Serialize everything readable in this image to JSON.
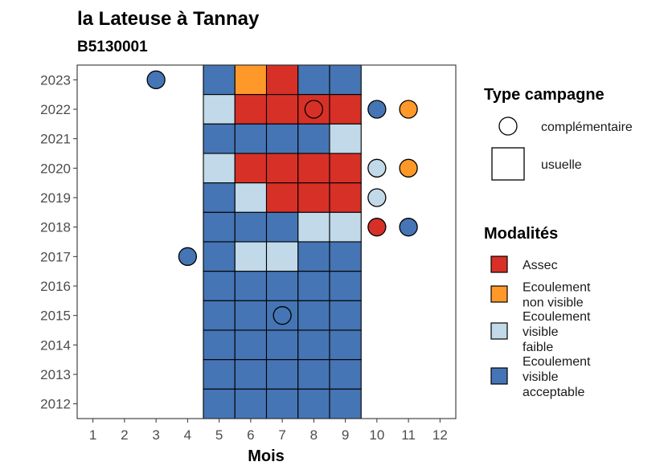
{
  "chart_data": {
    "type": "heatmap",
    "title": "la Lateuse à Tannay",
    "subtitle": "B5130001",
    "xlabel": "Mois",
    "ylabel": "",
    "x_ticks": [
      1,
      2,
      3,
      4,
      5,
      6,
      7,
      8,
      9,
      10,
      11,
      12
    ],
    "y_ticks": [
      2012,
      2013,
      2014,
      2015,
      2016,
      2017,
      2018,
      2019,
      2020,
      2021,
      2022,
      2023
    ],
    "xlim": [
      0.5,
      12.5
    ],
    "ylim": [
      2011.5,
      2023.5
    ],
    "grid": false,
    "legend_position": "right",
    "colors": {
      "Assec": "#d73027",
      "Ecoulement non visible": "#fe9929",
      "Ecoulement visible faible": "#c1d9e8",
      "Ecoulement visible acceptable": "#4575b4"
    },
    "usuelle": [
      {
        "year": 2023,
        "values": [
          "Ecoulement visible acceptable",
          "Ecoulement non visible",
          "Assec",
          "Ecoulement visible acceptable",
          "Ecoulement visible acceptable"
        ]
      },
      {
        "year": 2022,
        "values": [
          "Ecoulement visible faible",
          "Assec",
          "Assec",
          "Assec",
          "Assec"
        ]
      },
      {
        "year": 2021,
        "values": [
          "Ecoulement visible acceptable",
          "Ecoulement visible acceptable",
          "Ecoulement visible acceptable",
          "Ecoulement visible acceptable",
          "Ecoulement visible faible"
        ]
      },
      {
        "year": 2020,
        "values": [
          "Ecoulement visible faible",
          "Assec",
          "Assec",
          "Assec",
          "Assec"
        ]
      },
      {
        "year": 2019,
        "values": [
          "Ecoulement visible acceptable",
          "Ecoulement visible faible",
          "Assec",
          "Assec",
          "Assec"
        ]
      },
      {
        "year": 2018,
        "values": [
          "Ecoulement visible acceptable",
          "Ecoulement visible acceptable",
          "Ecoulement visible acceptable",
          "Ecoulement visible faible",
          "Ecoulement visible faible"
        ]
      },
      {
        "year": 2017,
        "values": [
          "Ecoulement visible acceptable",
          "Ecoulement visible faible",
          "Ecoulement visible faible",
          "Ecoulement visible acceptable",
          "Ecoulement visible acceptable"
        ]
      },
      {
        "year": 2016,
        "values": [
          "Ecoulement visible acceptable",
          "Ecoulement visible acceptable",
          "Ecoulement visible acceptable",
          "Ecoulement visible acceptable",
          "Ecoulement visible acceptable"
        ]
      },
      {
        "year": 2015,
        "values": [
          "Ecoulement visible acceptable",
          "Ecoulement visible acceptable",
          "Ecoulement visible acceptable",
          "Ecoulement visible acceptable",
          "Ecoulement visible acceptable"
        ]
      },
      {
        "year": 2014,
        "values": [
          "Ecoulement visible acceptable",
          "Ecoulement visible acceptable",
          "Ecoulement visible acceptable",
          "Ecoulement visible acceptable",
          "Ecoulement visible acceptable"
        ]
      },
      {
        "year": 2013,
        "values": [
          "Ecoulement visible acceptable",
          "Ecoulement visible acceptable",
          "Ecoulement visible acceptable",
          "Ecoulement visible acceptable",
          "Ecoulement visible acceptable"
        ]
      },
      {
        "year": 2012,
        "values": [
          "Ecoulement visible acceptable",
          "Ecoulement visible acceptable",
          "Ecoulement visible acceptable",
          "Ecoulement visible acceptable",
          "Ecoulement visible acceptable"
        ]
      }
    ],
    "usuelle_months": [
      5,
      6,
      7,
      8,
      9
    ],
    "complementaire": [
      {
        "year": 2023,
        "month": 3,
        "value": "Ecoulement visible acceptable"
      },
      {
        "year": 2022,
        "month": 8,
        "value": "Assec"
      },
      {
        "year": 2022,
        "month": 10,
        "value": "Ecoulement visible acceptable"
      },
      {
        "year": 2022,
        "month": 11,
        "value": "Ecoulement non visible"
      },
      {
        "year": 2020,
        "month": 10,
        "value": "Ecoulement visible faible"
      },
      {
        "year": 2020,
        "month": 11,
        "value": "Ecoulement non visible"
      },
      {
        "year": 2019,
        "month": 10,
        "value": "Ecoulement visible faible"
      },
      {
        "year": 2018,
        "month": 10,
        "value": "Assec"
      },
      {
        "year": 2018,
        "month": 11,
        "value": "Ecoulement visible acceptable"
      },
      {
        "year": 2017,
        "month": 4,
        "value": "Ecoulement visible acceptable"
      },
      {
        "year": 2015,
        "month": 7,
        "value": "Ecoulement visible acceptable"
      }
    ],
    "legend_type": {
      "title": "Type campagne",
      "entries": [
        {
          "shape": "circle",
          "label": "complémentaire"
        },
        {
          "shape": "square",
          "label": "usuelle"
        }
      ]
    },
    "legend_modalites": {
      "title": "Modalités",
      "entries": [
        {
          "key": "Assec",
          "lines": [
            "Assec"
          ]
        },
        {
          "key": "Ecoulement non visible",
          "lines": [
            "Ecoulement",
            "non visible"
          ]
        },
        {
          "key": "Ecoulement visible faible",
          "lines": [
            "Ecoulement",
            "visible",
            "faible"
          ]
        },
        {
          "key": "Ecoulement visible acceptable",
          "lines": [
            "Ecoulement",
            "visible",
            "acceptable"
          ]
        }
      ]
    }
  }
}
